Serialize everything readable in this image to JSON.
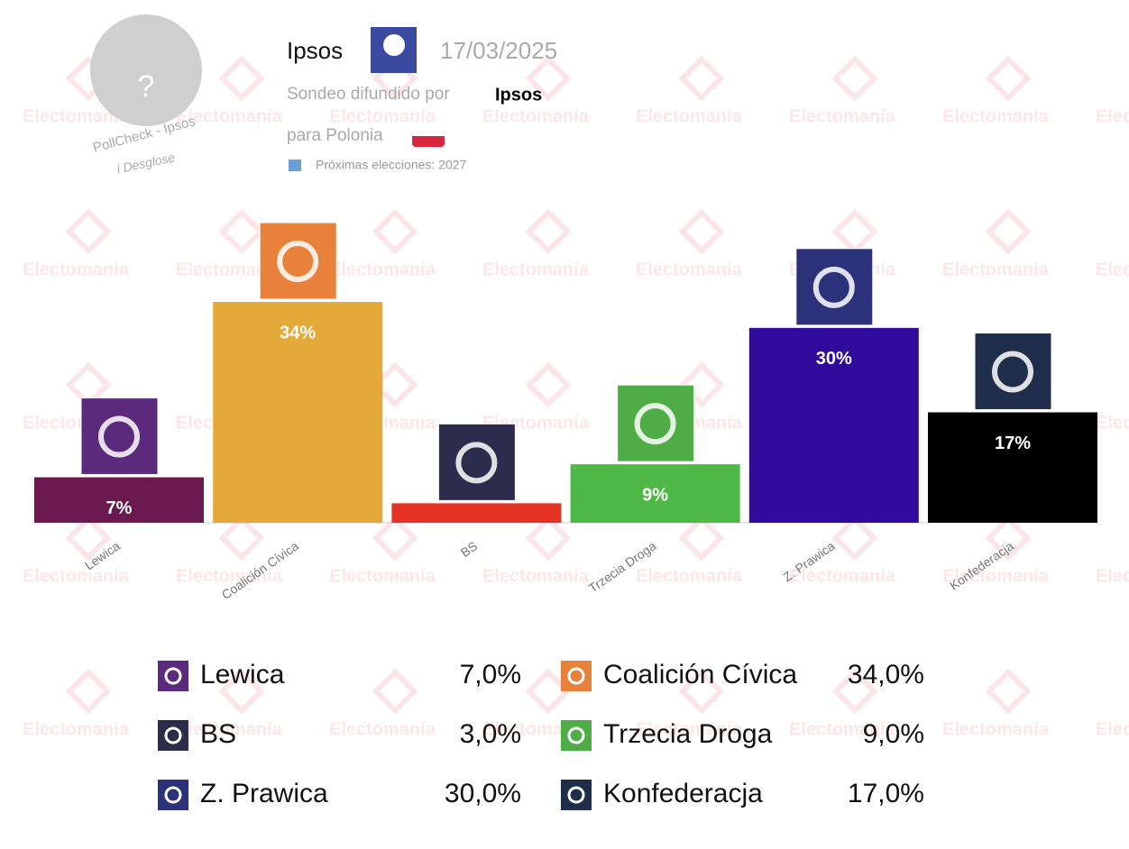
{
  "header": {
    "pollster": "Ipsos",
    "date": "17/03/2025",
    "published_by_label": "Sondeo difundido por",
    "published_by": "Ipsos",
    "for_country": "para Polonia",
    "next_elections": "Próximas elecciones: 2027",
    "avatar": "?",
    "pollcheck": "PollCheck - Ipsos",
    "breakdown": "i Desglose",
    "watermark": "Electomanía"
  },
  "chart_data": {
    "type": "bar",
    "categories": [
      "Lewica",
      "Coalición Cívica",
      "BS",
      "Trzecia Droga",
      "Z. Prawica",
      "Konfederacja"
    ],
    "values": [
      7,
      34,
      3,
      9,
      30,
      17
    ],
    "value_labels": [
      "7%",
      "34%",
      null,
      "9%",
      "30%",
      "17%"
    ],
    "legend_labels": [
      "7,0%",
      "34,0%",
      "3,0%",
      "9,0%",
      "30,0%",
      "17,0%"
    ],
    "colors": [
      "#6b1a4f",
      "#e3aa3a",
      "#e53323",
      "#4fb947",
      "#300a9a",
      "#000000"
    ],
    "logo_colors": [
      "#5b2a7c",
      "#e8823a",
      "#2c2c4c",
      "#4fad48",
      "#2b327a",
      "#1f2e4a"
    ]
  }
}
